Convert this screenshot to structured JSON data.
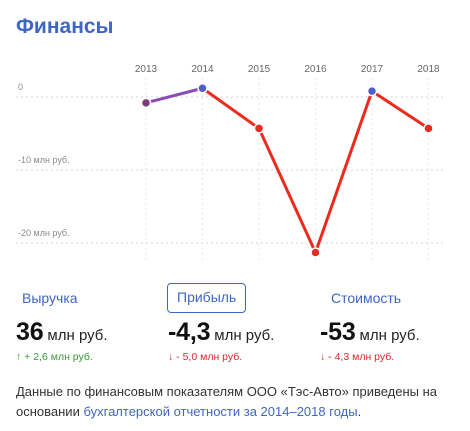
{
  "section": {
    "title": "Финансы"
  },
  "chart_data": {
    "type": "line",
    "x": [
      "2013",
      "2014",
      "2015",
      "2016",
      "2017",
      "2018"
    ],
    "series": [
      {
        "values": [
          -0.8,
          1.2,
          -4.3,
          -21.3,
          0.8,
          -4.3
        ]
      }
    ],
    "y_tick_labels": [
      "0",
      "-10 млн руб.",
      "-20 млн руб."
    ],
    "y_ticks": [
      0,
      -10,
      -20
    ],
    "ylim": [
      -23,
      2
    ],
    "colors": {
      "negative": "#ee2a1e",
      "positive": "#5b5fd9",
      "mixed": "#8a4db5",
      "point_positive": "#4f5ec9",
      "point_negative": "#e52a20",
      "point_zero": "#7d3d7a"
    }
  },
  "tabs": [
    {
      "label": "Выручка",
      "active": false
    },
    {
      "label": "Прибыль",
      "active": true
    },
    {
      "label": "Стоимость",
      "active": false
    }
  ],
  "metrics": [
    {
      "value": "36",
      "unit": "млн руб.",
      "delta_arrow": "↑",
      "delta_text": "+ 2,6 млн руб.",
      "trend": "up"
    },
    {
      "value": "-4,3",
      "unit": "млн руб.",
      "delta_arrow": "↓",
      "delta_text": "- 5,0 млн руб.",
      "trend": "down"
    },
    {
      "value": "-53",
      "unit": "млн руб.",
      "delta_arrow": "↓",
      "delta_text": "- 4,3 млн руб.",
      "trend": "down"
    }
  ],
  "footnote": {
    "text": "Данные по финансовым показателям ООО «Тэс-Авто» приведены на основании ",
    "link": "бухгалтерской отчетности за 2014–2018 годы",
    "end": "."
  }
}
